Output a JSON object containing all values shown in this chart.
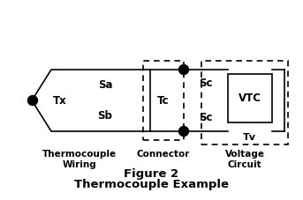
{
  "title_line1": "Figure 2",
  "title_line2": "Thermocouple Example",
  "label_tx": "Tx",
  "label_sa": "Sa",
  "label_sb": "Sb",
  "label_tc": "Tc",
  "label_sc_top": "Sc",
  "label_sc_bot": "Sc",
  "label_vtc": "VTC",
  "label_tv": "Tv",
  "caption_left": "Thermocouple\nWiring",
  "caption_mid": "Connector",
  "caption_right": "Voltage\nCircuit",
  "bg_color": "#ffffff",
  "line_color": "#000000",
  "text_color": "#000000",
  "dot_color": "#000000"
}
